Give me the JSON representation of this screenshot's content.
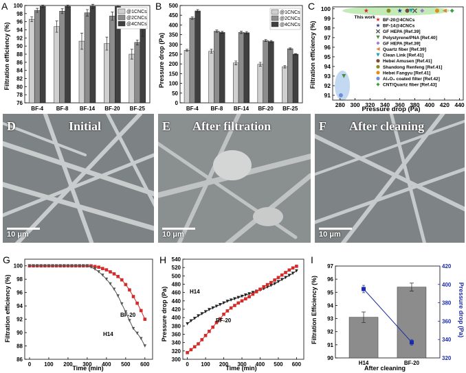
{
  "panel_letters": {
    "a": "A",
    "b": "B",
    "c": "C",
    "d": "D",
    "e": "E",
    "f": "F",
    "g": "G",
    "h": "H",
    "i": "I"
  },
  "sem": {
    "d_title": "Initial",
    "e_title": "After filtration",
    "f_title": "After cleaning",
    "scale": "10 μm"
  },
  "chart_data": [
    {
      "id": "A",
      "type": "bar",
      "title": "",
      "xlabel": "",
      "ylabel": "Filtration efficiency (%)",
      "categories": [
        "BF-4",
        "BF-8",
        "BF-14",
        "BF-20",
        "BF-25"
      ],
      "ylim": [
        76,
        100
      ],
      "yticks": [
        76,
        78,
        80,
        82,
        84,
        86,
        88,
        90,
        92,
        94,
        96,
        98,
        100
      ],
      "series": [
        {
          "name": "@1CNCs",
          "color": "#cfcfcf",
          "values": [
            96.6,
            94.8,
            91.2,
            90.6,
            88
          ],
          "errors": [
            0.6,
            1.4,
            2,
            1.6,
            1.2
          ]
        },
        {
          "name": "@2CNCs",
          "color": "#8c8c8c",
          "values": [
            98.8,
            98.6,
            98.2,
            97.4,
            90.9
          ],
          "errors": [
            0.5,
            0.6,
            0.8,
            1,
            0.6
          ]
        },
        {
          "name": "@4CNCs",
          "color": "#404040",
          "values": [
            99.8,
            99.8,
            99.8,
            99.8,
            94.2
          ],
          "errors": [
            0.3,
            0.3,
            0.5,
            0.2,
            1.8
          ]
        }
      ]
    },
    {
      "id": "B",
      "type": "bar",
      "title": "",
      "xlabel": "",
      "ylabel": "Pressure drop (Pa)",
      "categories": [
        "BF-4",
        "BF-8",
        "BF-14",
        "BF-20",
        "BF-25"
      ],
      "ylim": [
        0,
        500
      ],
      "yticks": [
        0,
        50,
        100,
        150,
        200,
        250,
        300,
        350,
        400,
        450,
        500
      ],
      "series": [
        {
          "name": "@1CNCs",
          "color": "#cfcfcf",
          "values": [
            270,
            265,
            205,
            198,
            185
          ],
          "errors": [
            5,
            10,
            10,
            10,
            6
          ]
        },
        {
          "name": "@2CNCs",
          "color": "#8c8c8c",
          "values": [
            435,
            368,
            362,
            320,
            278
          ],
          "errors": [
            6,
            6,
            6,
            5,
            4
          ]
        },
        {
          "name": "@4CNCs",
          "color": "#404040",
          "values": [
            472,
            362,
            360,
            315,
            250
          ],
          "errors": [
            7,
            5,
            6,
            5,
            3
          ]
        }
      ]
    },
    {
      "id": "C",
      "type": "scatter",
      "title": "",
      "xlabel": "Pressure drop (Pa)",
      "ylabel": "Filtration efficiency (%)",
      "xlim": [
        270,
        445
      ],
      "ylim": [
        90.5,
        100.2
      ],
      "xticks": [
        280,
        300,
        320,
        340,
        360,
        380,
        400,
        420,
        440
      ],
      "yticks": [
        91,
        92,
        93,
        94,
        95,
        96,
        97,
        98,
        99,
        100
      ],
      "annotation": "This work",
      "series": [
        {
          "name": "BF-20@4CNCs",
          "color": "#d42020",
          "marker": "star",
          "x": [
            315
          ],
          "y": [
            99.8
          ]
        },
        {
          "name": "BF-14@4CNCs",
          "color": "#1c2f8a",
          "marker": "star",
          "x": [
            360
          ],
          "y": [
            99.8
          ]
        },
        {
          "name": "GF HEPA [Ref.39]",
          "color": "#555555",
          "marker": "x",
          "x": [
            380
          ],
          "y": [
            99.8
          ]
        },
        {
          "name": "Polystyrene/PNA [Ref.40]",
          "color": "#4e8c45",
          "marker": "tri-down",
          "x": [
            285
          ],
          "y": [
            93
          ]
        },
        {
          "name": "GF HEPA [Ref.39]",
          "color": "#a07bc8",
          "marker": "diamond",
          "x": [
            390
          ],
          "y": [
            99.8
          ]
        },
        {
          "name": "Quartz fiber [Ref.39]",
          "color": "#e08030",
          "marker": "tri-left",
          "x": [
            420
          ],
          "y": [
            99.8
          ]
        },
        {
          "name": "Clean Link [Ref.41]",
          "color": "#20a0b0",
          "marker": "tri-down",
          "x": [
            375
          ],
          "y": [
            99.8
          ]
        },
        {
          "name": "Hebei Amusen [Ref.41]",
          "color": "#7a4a30",
          "marker": "circle",
          "x": [
            370
          ],
          "y": [
            99.8
          ]
        },
        {
          "name": "Shandong Renfeng [Ref.41]",
          "color": "#8a8a20",
          "marker": "circle",
          "x": [
            345
          ],
          "y": [
            99.8
          ]
        },
        {
          "name": "Hebei Fangyu [Ref.41]",
          "color": "#e09010",
          "marker": "circle",
          "x": [
            410
          ],
          "y": [
            99.8
          ]
        },
        {
          "name": "Al₂O₃ coated filter [Ref.42]",
          "color": "#6a8ed8",
          "marker": "circle",
          "x": [
            281
          ],
          "y": [
            91
          ]
        },
        {
          "name": "CNT/Quartz fiber [Ref.43]",
          "color": "#40a040",
          "marker": "diamond",
          "x": [
            430
          ],
          "y": [
            99.8
          ]
        }
      ]
    },
    {
      "id": "G",
      "type": "line",
      "title": "",
      "xlabel": "Time (min)",
      "ylabel": "Filtration efficiency (%)",
      "xlim": [
        -25,
        640
      ],
      "ylim": [
        86,
        101
      ],
      "xticks": [
        0,
        100,
        200,
        300,
        400,
        500,
        600
      ],
      "yticks": [
        86,
        88,
        90,
        92,
        94,
        96,
        98,
        100
      ],
      "series": [
        {
          "name": "BF-20",
          "color": "#d42a2a",
          "marker": "square",
          "x": [
            0,
            20,
            40,
            60,
            80,
            100,
            120,
            140,
            160,
            180,
            200,
            220,
            240,
            260,
            280,
            300,
            320,
            340,
            360,
            380,
            400,
            420,
            440,
            460,
            480,
            500,
            520,
            540,
            560,
            580,
            600
          ],
          "y": [
            100,
            100,
            100,
            100,
            100,
            100,
            100,
            100,
            100,
            100,
            100,
            100,
            100,
            100,
            100,
            100,
            100,
            99.9,
            99.8,
            99.6,
            99.4,
            99.1,
            98.8,
            98.4,
            97.9,
            97.2,
            96.4,
            95.4,
            94.4,
            93.3,
            92
          ]
        },
        {
          "name": "H14",
          "color": "#555555",
          "marker": "tri-down",
          "x": [
            0,
            20,
            40,
            60,
            80,
            100,
            120,
            140,
            160,
            180,
            200,
            220,
            240,
            260,
            280,
            300,
            320,
            340,
            360,
            380,
            400,
            420,
            440,
            460,
            480,
            500,
            520,
            540,
            560,
            580,
            600
          ],
          "y": [
            100,
            100,
            100,
            100,
            100,
            100,
            100,
            100,
            100,
            100,
            100,
            100,
            100,
            100,
            100,
            100,
            99.8,
            99.5,
            99.1,
            98.6,
            98,
            97.3,
            96.5,
            95.5,
            94.3,
            93.1,
            91.8,
            90.6,
            89.9,
            89.1,
            88
          ]
        }
      ]
    },
    {
      "id": "H",
      "type": "line",
      "title": "",
      "xlabel": "Time (min)",
      "ylabel": "Pressure drop (Pa)",
      "xlim": [
        -25,
        640
      ],
      "ylim": [
        300,
        540
      ],
      "xticks": [
        0,
        100,
        200,
        300,
        400,
        500,
        600
      ],
      "yticks": [
        300,
        320,
        340,
        360,
        380,
        400,
        420,
        440,
        460,
        480,
        500,
        520,
        540
      ],
      "series": [
        {
          "name": "H14",
          "color": "#222222",
          "marker": "tri-down",
          "x": [
            0,
            20,
            40,
            60,
            80,
            100,
            120,
            140,
            160,
            180,
            200,
            220,
            240,
            260,
            280,
            300,
            320,
            340,
            360,
            380,
            400,
            420,
            440,
            460,
            480,
            500,
            520,
            540,
            560,
            580,
            600
          ],
          "y": [
            385,
            392,
            398,
            404,
            409,
            414,
            419,
            423,
            427,
            431,
            435,
            439,
            442,
            445,
            448,
            451,
            454,
            457,
            460,
            463,
            466,
            469,
            473,
            477,
            481,
            486,
            491,
            496,
            501,
            506,
            512
          ]
        },
        {
          "name": "BF-20",
          "color": "#d42a2a",
          "marker": "square",
          "x": [
            0,
            20,
            40,
            60,
            80,
            100,
            120,
            140,
            160,
            180,
            200,
            220,
            240,
            260,
            280,
            300,
            320,
            340,
            360,
            380,
            400,
            420,
            440,
            460,
            480,
            500,
            520,
            540,
            560,
            580,
            600
          ],
          "y": [
            316,
            323,
            330,
            337,
            347,
            357,
            367,
            377,
            388,
            397,
            408,
            416,
            423,
            429,
            435,
            440,
            445,
            450,
            456,
            462,
            468,
            474,
            479,
            484,
            490,
            496,
            502,
            508,
            514,
            519,
            523
          ]
        }
      ]
    },
    {
      "id": "I",
      "type": "bar",
      "title": "",
      "xlabel": "After cleaning",
      "ylabel": "Filtration Efficiency (%)",
      "y2label": "Pressure drop (Pa)",
      "categories": [
        "H14",
        "BF-20"
      ],
      "ylim": [
        90,
        97
      ],
      "yticks": [
        90,
        91,
        92,
        93,
        94,
        95,
        96,
        97
      ],
      "y2lim": [
        320,
        420
      ],
      "y2ticks": [
        320,
        340,
        360,
        380,
        400,
        420
      ],
      "bars": {
        "values": [
          93.1,
          95.4
        ],
        "errors": [
          0.4,
          0.3
        ],
        "color": "#8c8c8c"
      },
      "line": {
        "values": [
          395,
          337
        ],
        "errors": [
          4,
          3
        ],
        "color": "#1a2aa8"
      }
    }
  ]
}
